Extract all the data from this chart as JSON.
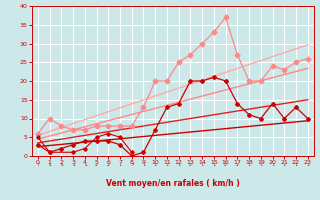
{
  "xlabel": "Vent moyen/en rafales ( km/h )",
  "bg_color": "#cce8e8",
  "grid_color": "#ffffff",
  "xlim": [
    -0.5,
    23.5
  ],
  "ylim": [
    0,
    40
  ],
  "yticks": [
    0,
    5,
    10,
    15,
    20,
    25,
    30,
    35,
    40
  ],
  "xticks": [
    0,
    1,
    2,
    3,
    4,
    5,
    6,
    7,
    8,
    9,
    10,
    11,
    12,
    13,
    14,
    15,
    16,
    17,
    18,
    19,
    20,
    21,
    22,
    23
  ],
  "x_full": [
    0,
    1,
    2,
    3,
    4,
    5,
    6,
    7,
    8,
    9,
    10,
    11,
    12,
    13,
    14,
    15,
    16,
    17,
    18,
    19,
    20,
    21,
    22,
    23
  ],
  "line_gust": [
    6,
    10,
    8,
    7,
    7,
    8,
    8,
    8,
    8,
    13,
    20,
    20,
    25,
    27,
    30,
    33,
    37,
    27,
    20,
    20,
    24,
    23,
    25,
    26
  ],
  "line_wind": [
    3,
    1,
    2,
    3,
    4,
    4,
    4,
    3,
    0,
    1,
    7,
    13,
    14,
    20,
    20,
    21,
    20,
    14,
    11,
    10,
    14,
    10,
    13,
    10
  ],
  "line_low_x": [
    0,
    1,
    3,
    4,
    5,
    6,
    7,
    8
  ],
  "line_low_y": [
    5,
    1,
    1,
    2,
    5,
    6,
    5,
    1
  ],
  "reg_light1_a": 1.05,
  "reg_light1_b": 5.5,
  "reg_light2_a": 0.82,
  "reg_light2_b": 4.5,
  "reg_dark1_a": 0.5,
  "reg_dark1_b": 3.5,
  "reg_dark2_a": 0.3,
  "reg_dark2_b": 2.5,
  "color_dark_red": "#cc0000",
  "color_mid_red": "#dd2222",
  "color_light_red": "#ff8888",
  "color_vlight_red": "#ffaaaa"
}
